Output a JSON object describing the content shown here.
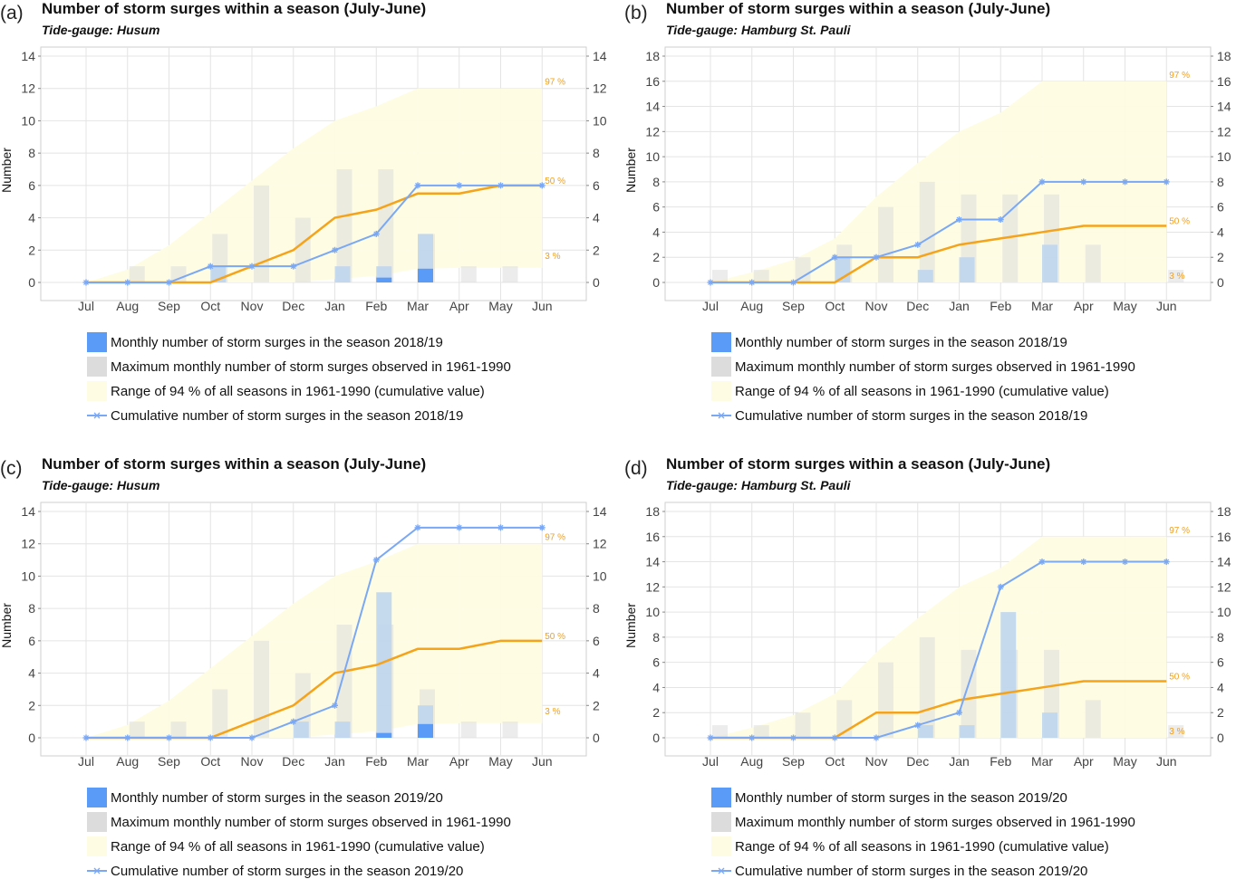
{
  "colors": {
    "monthly": "#5b9bf8",
    "monthly_light": "#bcd4ee",
    "maximum": "#dcdcdc",
    "range": "#fefde3",
    "cumulative": "#7aa8f5",
    "median": "#f5a31a",
    "grid": "#e4e4e4"
  },
  "chart_data": [
    {
      "id": "a",
      "type": "bar+line",
      "panel_label": "(a)",
      "title": "Number of storm surges within a season (July-June)",
      "subtitle": "Tide-gauge: Husum",
      "ylabel": "Number",
      "ylim": [
        0,
        14
      ],
      "yticks": [
        0,
        2,
        4,
        6,
        8,
        10,
        12,
        14
      ],
      "categories": [
        "Jul",
        "Aug",
        "Sep",
        "Oct",
        "Nov",
        "Dec",
        "Jan",
        "Feb",
        "Mar",
        "Apr",
        "May",
        "Jun"
      ],
      "max_monthly_1961_1990": [
        0,
        1,
        1,
        3,
        6,
        4,
        7,
        7,
        3,
        1,
        1,
        0
      ],
      "monthly_season": [
        0,
        0,
        0,
        1,
        0,
        0,
        1,
        1,
        3,
        0,
        0,
        0
      ],
      "monthly_dark": [
        0,
        0,
        0,
        0,
        0,
        0,
        0,
        0.3,
        0.85,
        0,
        0,
        0
      ],
      "range_p3": [
        0,
        0,
        0,
        0,
        0,
        0,
        0.2,
        0.4,
        0.85,
        0.9,
        0.9,
        0.9
      ],
      "range_p97": [
        0,
        0.8,
        2.3,
        4.3,
        6.3,
        8.3,
        10,
        10.9,
        12,
        12,
        12,
        12
      ],
      "median_p50": [
        0,
        0,
        0,
        0,
        1,
        2,
        4,
        4.5,
        5.5,
        5.5,
        6,
        6
      ],
      "cumulative_season": [
        0,
        0,
        0,
        1,
        1,
        1,
        2,
        3,
        6,
        6,
        6,
        6
      ],
      "pct_labels": [
        "97 %",
        "50 %",
        "3 %"
      ],
      "legend": [
        "Monthly number of storm surges in the season 2018/19",
        "Maximum monthly number of storm surges observed in 1961-1990",
        "Range of 94 % of all seasons in 1961-1990 (cumulative value)",
        "Cumulative number of storm surges in the season 2018/19"
      ]
    },
    {
      "id": "b",
      "type": "bar+line",
      "panel_label": "(b)",
      "title": "Number of storm surges within a season (July-June)",
      "subtitle": "Tide-gauge: Hamburg St. Pauli",
      "ylabel": "Number",
      "ylim": [
        0,
        18
      ],
      "yticks": [
        0,
        2,
        4,
        6,
        8,
        10,
        12,
        14,
        16,
        18
      ],
      "categories": [
        "Jul",
        "Aug",
        "Sep",
        "Oct",
        "Nov",
        "Dec",
        "Jan",
        "Feb",
        "Mar",
        "Apr",
        "May",
        "Jun"
      ],
      "max_monthly_1961_1990": [
        1,
        1,
        2,
        3,
        6,
        8,
        7,
        7,
        7,
        3,
        0,
        1
      ],
      "monthly_season": [
        0,
        0,
        0,
        2,
        0,
        1,
        2,
        0,
        3,
        0,
        0,
        0
      ],
      "monthly_dark": [
        0,
        0,
        0,
        0,
        0,
        0,
        0,
        0,
        0,
        0,
        0,
        0
      ],
      "range_p3": [
        0,
        0,
        0,
        0,
        0,
        0,
        0,
        0,
        0,
        0,
        0,
        0
      ],
      "range_p97": [
        0,
        0.8,
        1.8,
        3.5,
        6.8,
        9.5,
        12,
        13.5,
        16,
        16,
        16,
        16
      ],
      "median_p50": [
        0,
        0,
        0,
        0,
        2,
        2,
        3,
        3.5,
        4,
        4.5,
        4.5,
        4.5
      ],
      "cumulative_season": [
        0,
        0,
        0,
        2,
        2,
        3,
        5,
        5,
        8,
        8,
        8,
        8
      ],
      "pct_labels": [
        "97 %",
        "50 %",
        "3 %"
      ],
      "legend": [
        "Monthly number of storm surges in the season 2018/19",
        "Maximum monthly number of storm surges observed in 1961-1990",
        "Range of 94 % of all seasons in 1961-1990 (cumulative value)",
        "Cumulative number of storm surges in the season 2018/19"
      ]
    },
    {
      "id": "c",
      "type": "bar+line",
      "panel_label": "(c)",
      "title": "Number of storm surges within a season (July-June)",
      "subtitle": "Tide-gauge: Husum",
      "ylabel": "Number",
      "ylim": [
        0,
        14
      ],
      "yticks": [
        0,
        2,
        4,
        6,
        8,
        10,
        12,
        14
      ],
      "categories": [
        "Jul",
        "Aug",
        "Sep",
        "Oct",
        "Nov",
        "Dec",
        "Jan",
        "Feb",
        "Mar",
        "Apr",
        "May",
        "Jun"
      ],
      "max_monthly_1961_1990": [
        0,
        1,
        1,
        3,
        6,
        4,
        7,
        7,
        3,
        1,
        1,
        0
      ],
      "monthly_season": [
        0,
        0,
        0,
        0,
        0,
        1,
        1,
        9,
        2,
        0,
        0,
        0
      ],
      "monthly_dark": [
        0,
        0,
        0,
        0,
        0,
        0,
        0,
        0.3,
        0.85,
        0,
        0,
        0
      ],
      "range_p3": [
        0,
        0,
        0,
        0,
        0,
        0,
        0.2,
        0.4,
        0.85,
        0.9,
        0.9,
        0.9
      ],
      "range_p97": [
        0,
        0.8,
        2.3,
        4.3,
        6.3,
        8.3,
        10,
        10.9,
        12,
        12,
        12,
        12
      ],
      "median_p50": [
        0,
        0,
        0,
        0,
        1,
        2,
        4,
        4.5,
        5.5,
        5.5,
        6,
        6
      ],
      "cumulative_season": [
        0,
        0,
        0,
        0,
        0,
        1,
        2,
        11,
        13,
        13,
        13,
        13
      ],
      "pct_labels": [
        "97 %",
        "50 %",
        "3 %"
      ],
      "legend": [
        "Monthly number of storm surges in the season 2019/20",
        "Maximum monthly number of storm surges observed in 1961-1990",
        "Range of 94 % of all seasons in 1961-1990 (cumulative value)",
        "Cumulative number of storm surges in the season 2019/20"
      ]
    },
    {
      "id": "d",
      "type": "bar+line",
      "panel_label": "(d)",
      "title": "Number of storm surges within a season (July-June)",
      "subtitle": "Tide-gauge: Hamburg St. Pauli",
      "ylabel": "Number",
      "ylim": [
        0,
        18
      ],
      "yticks": [
        0,
        2,
        4,
        6,
        8,
        10,
        12,
        14,
        16,
        18
      ],
      "categories": [
        "Jul",
        "Aug",
        "Sep",
        "Oct",
        "Nov",
        "Dec",
        "Jan",
        "Feb",
        "Mar",
        "Apr",
        "May",
        "Jun"
      ],
      "max_monthly_1961_1990": [
        1,
        1,
        2,
        3,
        6,
        8,
        7,
        7,
        7,
        3,
        0,
        1
      ],
      "monthly_season": [
        0,
        0,
        0,
        0,
        0,
        1,
        1,
        10,
        2,
        0,
        0,
        0
      ],
      "monthly_dark": [
        0,
        0,
        0,
        0,
        0,
        0,
        0,
        0,
        0,
        0,
        0,
        0
      ],
      "range_p3": [
        0,
        0,
        0,
        0,
        0,
        0,
        0,
        0,
        0,
        0,
        0,
        0
      ],
      "range_p97": [
        0,
        0.8,
        1.8,
        3.5,
        6.8,
        9.5,
        12,
        13.5,
        16,
        16,
        16,
        16
      ],
      "median_p50": [
        0,
        0,
        0,
        0,
        2,
        2,
        3,
        3.5,
        4,
        4.5,
        4.5,
        4.5
      ],
      "cumulative_season": [
        0,
        0,
        0,
        0,
        0,
        1,
        2,
        12,
        14,
        14,
        14,
        14
      ],
      "pct_labels": [
        "97 %",
        "50 %",
        "3 %"
      ],
      "legend": [
        "Monthly number of storm surges in the season 2019/20",
        "Maximum monthly number of storm surges observed in 1961-1990",
        "Range of 94 % of all seasons in 1961-1990 (cumulative value)",
        "Cumulative number of storm surges in the season 2019/20"
      ]
    }
  ]
}
